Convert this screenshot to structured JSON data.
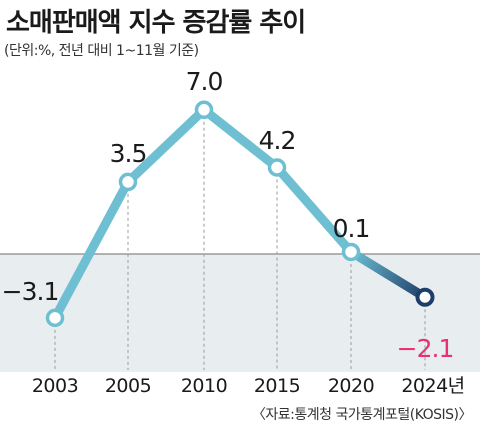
{
  "header": {
    "title": "소매판매액 지수 증감률 추이",
    "subtitle": "(단위:%, 전년 대비 1~11월 기준)"
  },
  "footer": {
    "source": "〈자료:통계청 국가통계포털(KOSIS)〉"
  },
  "colors": {
    "line": "#6dbfd1",
    "line_latest": "#1f3d6b",
    "negative_label": "#e8326f",
    "below_zero_fill": "#e8edf0",
    "zero_line": "#888888",
    "marker_fill": "#ffffff"
  },
  "chart_data": {
    "type": "line",
    "categories": [
      "2003",
      "2005",
      "2010",
      "2015",
      "2020",
      "2024년"
    ],
    "values": [
      -3.1,
      3.5,
      7.0,
      4.2,
      0.1,
      -2.1
    ],
    "value_labels": [
      "−3.1",
      "3.5",
      "7.0",
      "4.2",
      "0.1",
      "−2.1"
    ],
    "ylim": [
      -5,
      8
    ],
    "baseline": 0,
    "grid": "vertical dashed guides",
    "highlight_last": true
  }
}
